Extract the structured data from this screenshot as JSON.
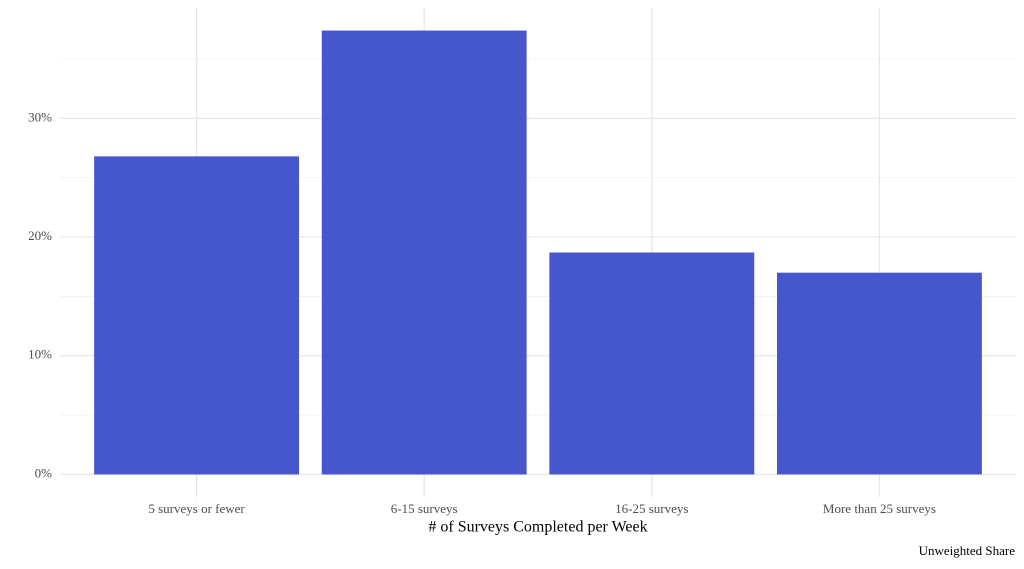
{
  "chart_data": {
    "type": "bar",
    "x_label": "# of Surveys Completed per Week",
    "caption": "Unweighted Share",
    "categories": [
      "5 surveys or fewer",
      "6-15 surveys",
      "16-25 surveys",
      "More than 25 surveys"
    ],
    "values": [
      26.8,
      37.4,
      18.7,
      17.0
    ],
    "color": "#4657cd",
    "ylim": [
      -1.9,
      39.3
    ],
    "yticks": [
      {
        "value": 0,
        "label": "0%"
      },
      {
        "value": 10,
        "label": "10%"
      },
      {
        "value": 20,
        "label": "20%"
      },
      {
        "value": 30,
        "label": "30%"
      }
    ],
    "minor_yticks": [
      5,
      15,
      25,
      35
    ],
    "grid": true
  }
}
